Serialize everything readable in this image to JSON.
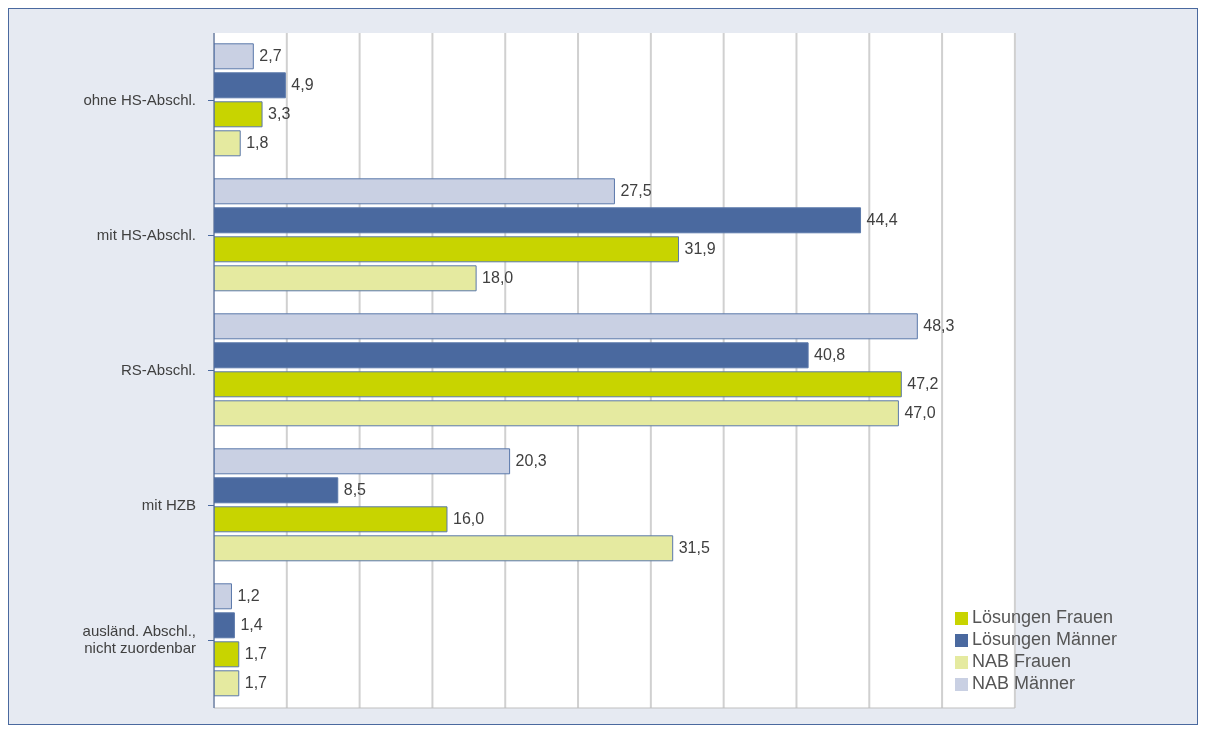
{
  "chart_data": {
    "type": "bar",
    "orientation": "horizontal",
    "relative": false,
    "categories": [
      "ohne HS-Abschl.",
      "mit HS-Abschl.",
      "RS-Abschl.",
      "mit HZB",
      "ausländ. Abschl., nicht zuordenbar"
    ],
    "series": [
      {
        "name": "NAB Männer",
        "color": "#c9d0e3",
        "values": [
          2.7,
          27.5,
          48.3,
          20.3,
          1.2
        ],
        "value_labels": [
          "2,7",
          "27,5",
          "48,3",
          "20,3",
          "1,2"
        ]
      },
      {
        "name": "Lösungen Männer",
        "color": "#4a699f",
        "values": [
          4.9,
          44.4,
          40.8,
          8.5,
          1.4
        ],
        "value_labels": [
          "4,9",
          "44,4",
          "40,8",
          "8,5",
          "1,4"
        ]
      },
      {
        "name": "Lösungen Frauen",
        "color": "#c8d400",
        "values": [
          3.3,
          31.9,
          47.2,
          16.0,
          1.7
        ],
        "value_labels": [
          "3,3",
          "31,9",
          "47,2",
          "16,0",
          "1,7"
        ]
      },
      {
        "name": "NAB Frauen",
        "color": "#e5eaa0",
        "values": [
          1.8,
          18.0,
          47.0,
          31.5,
          1.7
        ],
        "value_labels": [
          "1,8",
          "18,0",
          "47,0",
          "31,5",
          "1,7"
        ]
      }
    ],
    "xlim": [
      0,
      55
    ],
    "xticks": [
      {
        "value": 0,
        "label": null
      },
      {
        "value": 5,
        "label": null
      },
      {
        "value": 10,
        "label": null
      },
      {
        "value": 15,
        "label": null
      },
      {
        "value": 20,
        "label": null
      },
      {
        "value": 25,
        "label": null
      },
      {
        "value": 30,
        "label": null
      },
      {
        "value": 35,
        "label": null
      },
      {
        "value": 40,
        "label": null
      },
      {
        "value": 45,
        "label": null
      },
      {
        "value": 50,
        "label": null
      },
      {
        "value": 55,
        "label": null
      }
    ],
    "grid": "x",
    "legend": "bottom right",
    "tick_labels": "y"
  }
}
